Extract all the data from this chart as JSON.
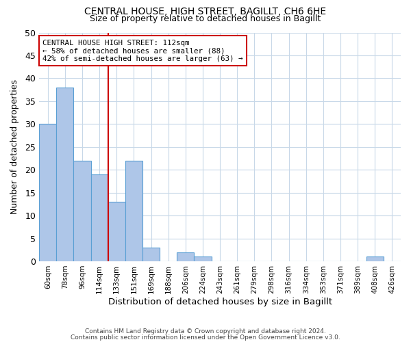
{
  "title": "CENTRAL HOUSE, HIGH STREET, BAGILLT, CH6 6HE",
  "subtitle": "Size of property relative to detached houses in Bagillt",
  "xlabel": "Distribution of detached houses by size in Bagillt",
  "ylabel": "Number of detached properties",
  "bin_labels": [
    "60sqm",
    "78sqm",
    "96sqm",
    "114sqm",
    "133sqm",
    "151sqm",
    "169sqm",
    "188sqm",
    "206sqm",
    "224sqm",
    "243sqm",
    "261sqm",
    "279sqm",
    "298sqm",
    "316sqm",
    "334sqm",
    "353sqm",
    "371sqm",
    "389sqm",
    "408sqm",
    "426sqm"
  ],
  "bar_heights": [
    30,
    38,
    22,
    19,
    13,
    22,
    3,
    0,
    2,
    1,
    0,
    0,
    0,
    0,
    0,
    0,
    0,
    0,
    0,
    1,
    0
  ],
  "bar_color": "#aec6e8",
  "bar_edge_color": "#5a9fd4",
  "vline_x": 3.5,
  "vline_color": "#cc0000",
  "ylim": [
    0,
    50
  ],
  "yticks": [
    0,
    5,
    10,
    15,
    20,
    25,
    30,
    35,
    40,
    45,
    50
  ],
  "annotation_title": "CENTRAL HOUSE HIGH STREET: 112sqm",
  "annotation_line1": "← 58% of detached houses are smaller (88)",
  "annotation_line2": "42% of semi-detached houses are larger (63) →",
  "annotation_box_color": "#ffffff",
  "annotation_box_edge": "#cc0000",
  "footer1": "Contains HM Land Registry data © Crown copyright and database right 2024.",
  "footer2": "Contains public sector information licensed under the Open Government Licence v3.0.",
  "grid_color": "#c8d8e8",
  "background_color": "#ffffff"
}
